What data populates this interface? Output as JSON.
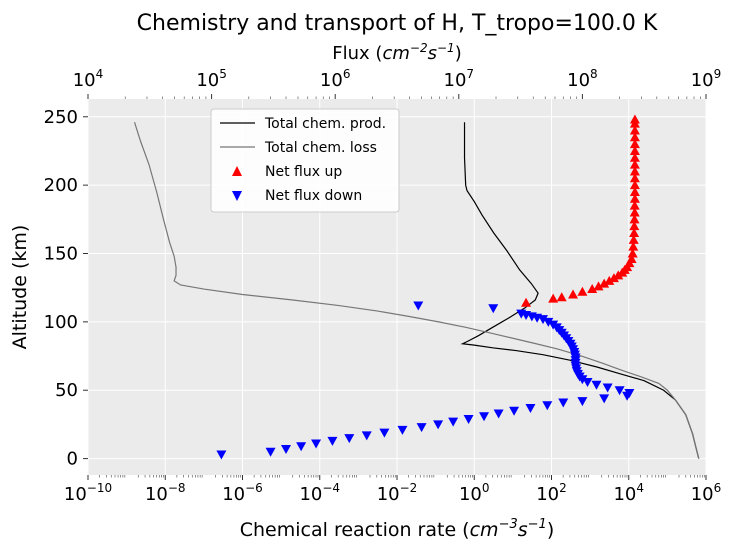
{
  "chart_data": {
    "type": "line",
    "title": "Chemistry and transport of H, T_tropo=100.0 K",
    "xlabel_bottom": {
      "text": "Chemical reaction rate (",
      "math": "cm",
      "exp1": "−3",
      "s": "s",
      "exp2": "−1",
      "close": ")"
    },
    "xlabel_top": {
      "text": "Flux (",
      "math": "cm",
      "exp1": "−2",
      "s": "s",
      "exp2": "−1",
      "close": ")"
    },
    "ylabel": "Altitude (km)",
    "grid": true,
    "legend_position": "upper-left",
    "bottom_axis": {
      "scale": "log",
      "range": [
        1e-10,
        1000000.0
      ],
      "ticks": [
        {
          "base": "10",
          "exp": "−10",
          "value": 1e-10
        },
        {
          "base": "10",
          "exp": "−8",
          "value": 1e-08
        },
        {
          "base": "10",
          "exp": "−6",
          "value": 1e-06
        },
        {
          "base": "10",
          "exp": "−4",
          "value": 0.0001
        },
        {
          "base": "10",
          "exp": "−2",
          "value": 0.01
        },
        {
          "base": "10",
          "exp": "0",
          "value": 1
        },
        {
          "base": "10",
          "exp": "2",
          "value": 100
        },
        {
          "base": "10",
          "exp": "4",
          "value": 10000
        },
        {
          "base": "10",
          "exp": "6",
          "value": 1000000
        }
      ]
    },
    "top_axis": {
      "scale": "log",
      "range": [
        10000.0,
        1000000000.0
      ],
      "ticks": [
        {
          "base": "10",
          "exp": "4",
          "value": 10000.0
        },
        {
          "base": "10",
          "exp": "5",
          "value": 100000.0
        },
        {
          "base": "10",
          "exp": "6",
          "value": 1000000.0
        },
        {
          "base": "10",
          "exp": "7",
          "value": 10000000.0
        },
        {
          "base": "10",
          "exp": "8",
          "value": 100000000.0
        },
        {
          "base": "10",
          "exp": "9",
          "value": 1000000000.0
        }
      ]
    },
    "y_axis": {
      "range": [
        -12,
        263
      ],
      "ticks": [
        "0",
        "50",
        "100",
        "150",
        "200",
        "250"
      ]
    },
    "series": [
      {
        "name": "Total chem. prod.",
        "type": "line",
        "axis": "bottom",
        "color": "#000000",
        "points": [
          [
            0.56,
            246
          ],
          [
            0.56,
            240
          ],
          [
            0.56,
            220
          ],
          [
            0.6,
            200
          ],
          [
            0.65,
            196
          ],
          [
            1.0,
            188
          ],
          [
            1.6,
            178
          ],
          [
            3.2,
            165
          ],
          [
            7,
            152
          ],
          [
            15,
            138
          ],
          [
            30,
            128
          ],
          [
            45,
            121
          ],
          [
            38,
            116
          ],
          [
            20,
            110
          ],
          [
            8,
            103
          ],
          [
            3,
            96
          ],
          [
            1.3,
            90
          ],
          [
            0.7,
            86
          ],
          [
            0.5,
            84
          ],
          [
            1.0,
            83
          ],
          [
            3,
            81
          ],
          [
            12,
            79
          ],
          [
            60,
            76
          ],
          [
            300,
            72
          ],
          [
            1500,
            67
          ],
          [
            6000,
            62
          ],
          [
            25000,
            57
          ],
          [
            80000,
            50
          ],
          [
            160000,
            43
          ],
          [
            300000,
            32
          ],
          [
            450000,
            18
          ],
          [
            550000,
            8
          ],
          [
            650000,
            0
          ]
        ]
      },
      {
        "name": "Total chem. loss",
        "type": "line",
        "axis": "bottom",
        "color": "#777777",
        "points": [
          [
            1.6e-09,
            246
          ],
          [
            2.3e-09,
            232
          ],
          [
            3.8e-09,
            215
          ],
          [
            6e-09,
            195
          ],
          [
            9e-09,
            175
          ],
          [
            1.3e-08,
            158
          ],
          [
            1.7e-08,
            148
          ],
          [
            1.9e-08,
            140
          ],
          [
            1.9e-08,
            134
          ],
          [
            1.7e-08,
            130
          ],
          [
            2.5e-08,
            127
          ],
          [
            1e-07,
            124
          ],
          [
            1e-06,
            120
          ],
          [
            2e-05,
            116
          ],
          [
            0.0003,
            112
          ],
          [
            0.003,
            108
          ],
          [
            0.02,
            104
          ],
          [
            0.12,
            100
          ],
          [
            0.6,
            96
          ],
          [
            2.5,
            92
          ],
          [
            10,
            88
          ],
          [
            40,
            84
          ],
          [
            150,
            80
          ],
          [
            600,
            75
          ],
          [
            2000,
            70
          ],
          [
            6000,
            65
          ],
          [
            20000,
            60
          ],
          [
            60000,
            55
          ],
          [
            100000,
            50
          ],
          [
            160000,
            43
          ],
          [
            300000,
            32
          ],
          [
            450000,
            18
          ],
          [
            550000,
            8
          ],
          [
            650000,
            0
          ]
        ]
      },
      {
        "name": "Net flux up",
        "type": "scatter",
        "marker": "triangle-up",
        "axis": "top",
        "color": "#ff0000",
        "points": [
          [
            35000000.0,
            114
          ],
          [
            58000000.0,
            117
          ],
          [
            68000000.0,
            118
          ],
          [
            84000000.0,
            120
          ],
          [
            100000000.0,
            122
          ],
          [
            120000000.0,
            124
          ],
          [
            135000000.0,
            126
          ],
          [
            150000000.0,
            128
          ],
          [
            165000000.0,
            130
          ],
          [
            180000000.0,
            132
          ],
          [
            195000000.0,
            134
          ],
          [
            210000000.0,
            136
          ],
          [
            220000000.0,
            138
          ],
          [
            230000000.0,
            140
          ],
          [
            240000000.0,
            143
          ],
          [
            250000000.0,
            146
          ],
          [
            255000000.0,
            150
          ],
          [
            258000000.0,
            155
          ],
          [
            260000000.0,
            160
          ],
          [
            262000000.0,
            165
          ],
          [
            263000000.0,
            170
          ],
          [
            264000000.0,
            175
          ],
          [
            265000000.0,
            180
          ],
          [
            265000000.0,
            185
          ],
          [
            266000000.0,
            190
          ],
          [
            266000000.0,
            195
          ],
          [
            266000000.0,
            200
          ],
          [
            266000000.0,
            205
          ],
          [
            266000000.0,
            210
          ],
          [
            266000000.0,
            215
          ],
          [
            266000000.0,
            220
          ],
          [
            266000000.0,
            225
          ],
          [
            266000000.0,
            230
          ],
          [
            266000000.0,
            235
          ],
          [
            266000000.0,
            240
          ],
          [
            266000000.0,
            245
          ],
          [
            266000000.0,
            248
          ]
        ]
      },
      {
        "name": "Net flux down",
        "type": "scatter",
        "marker": "triangle-down",
        "axis": "top",
        "color": "#0000ff",
        "points": [
          [
            120000.0,
            3
          ],
          [
            300000.0,
            5
          ],
          [
            400000.0,
            7
          ],
          [
            530000.0,
            9
          ],
          [
            700000.0,
            11
          ],
          [
            950000.0,
            13
          ],
          [
            1300000.0,
            15
          ],
          [
            1800000.0,
            17
          ],
          [
            2500000.0,
            19
          ],
          [
            3500000.0,
            21
          ],
          [
            5000000.0,
            23
          ],
          [
            6800000.0,
            25
          ],
          [
            9000000.0,
            27
          ],
          [
            12000000.0,
            29
          ],
          [
            16000000.0,
            31
          ],
          [
            21000000.0,
            33
          ],
          [
            28000000.0,
            35
          ],
          [
            38000000.0,
            37
          ],
          [
            52000000.0,
            39
          ],
          [
            70000000.0,
            41
          ],
          [
            100000000.0,
            42
          ],
          [
            150000000.0,
            44
          ],
          [
            230000000.0,
            46
          ],
          [
            240000000.0,
            48
          ],
          [
            200000000.0,
            50
          ],
          [
            160000000.0,
            52
          ],
          [
            130000000.0,
            54
          ],
          [
            110000000.0,
            56
          ],
          [
            100000000.0,
            58
          ],
          [
            95000000.0,
            60
          ],
          [
            92000000.0,
            62
          ],
          [
            90000000.0,
            64
          ],
          [
            89000000.0,
            66
          ],
          [
            88000000.0,
            68
          ],
          [
            88000000.0,
            70
          ],
          [
            88000000.0,
            72
          ],
          [
            88000000.0,
            74
          ],
          [
            87000000.0,
            76
          ],
          [
            86000000.0,
            78
          ],
          [
            84000000.0,
            80
          ],
          [
            82000000.0,
            82
          ],
          [
            80000000.0,
            84
          ],
          [
            77000000.0,
            86
          ],
          [
            74000000.0,
            88
          ],
          [
            71000000.0,
            90
          ],
          [
            68000000.0,
            92
          ],
          [
            65000000.0,
            94
          ],
          [
            62000000.0,
            96
          ],
          [
            58000000.0,
            98
          ],
          [
            53000000.0,
            100
          ],
          [
            48000000.0,
            102
          ],
          [
            43000000.0,
            103
          ],
          [
            39000000.0,
            104
          ],
          [
            35000000.0,
            105
          ],
          [
            32000000.0,
            106
          ],
          [
            19000000.0,
            110
          ],
          [
            4700000.0,
            112
          ]
        ]
      }
    ]
  }
}
